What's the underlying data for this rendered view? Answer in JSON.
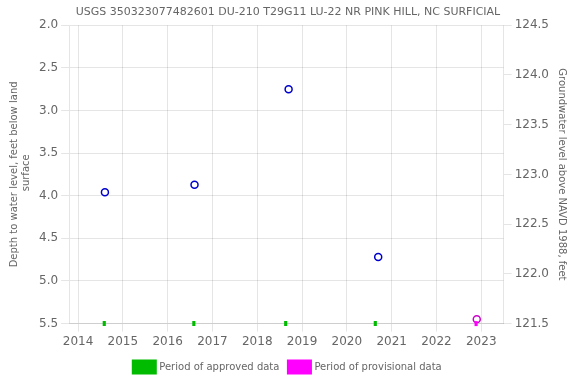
{
  "chart_data": {
    "type": "scatter",
    "title": "USGS 350323077482601 DU-210 T29G11 LU-22 NR PINK HILL, NC SURFICIAL",
    "ylabel": "Depth to water level, feet below land\n surface",
    "y2label": "Groundwater level above NAVD 1988, feet",
    "xlim": [
      2013.8,
      2023.5
    ],
    "xticks": [
      2014,
      2015,
      2016,
      2017,
      2018,
      2019,
      2020,
      2021,
      2022,
      2023
    ],
    "ylim": [
      5.5,
      2.0
    ],
    "yticks": [
      {
        "value": 2.0,
        "label": "2.0"
      },
      2.5,
      {
        "value": 3.0,
        "label": "3.0"
      },
      3.5,
      {
        "value": 4.0,
        "label": "4.0"
      },
      4.5,
      {
        "value": 5.0,
        "label": "5.0"
      },
      5.5
    ],
    "y2lim": [
      121.5,
      124.5
    ],
    "y2ticks": [
      121.5,
      {
        "value": 122.0,
        "label": "122.0"
      },
      122.5,
      {
        "value": 123.0,
        "label": "123.0"
      },
      123.5,
      {
        "value": 124.0,
        "label": "124.0"
      },
      124.5
    ],
    "grid": true,
    "legend": "bottom",
    "series": [
      {
        "type": "scatter",
        "marker": "circle",
        "color": "#0000cc",
        "x": [
          2014.6,
          2016.6,
          2018.7,
          2020.7
        ],
        "values": [
          3.96,
          3.87,
          2.75,
          4.72
        ]
      },
      {
        "type": "scatter",
        "marker": "circle",
        "color": "#cc00cc",
        "x": [
          2022.9
        ],
        "values": [
          5.45
        ]
      },
      {
        "type": "line",
        "line_style": "solid",
        "name": "Period of approved data",
        "color": "#00bb00",
        "x_start": [
          2014.55,
          2016.55,
          2018.6,
          2020.6
        ],
        "x_end": [
          2014.62,
          2016.62,
          2018.67,
          2020.67
        ]
      },
      {
        "type": "line",
        "line_style": "solid",
        "name": "Period of provisional data",
        "color": "#ff00ff",
        "x_start": [
          2022.85
        ],
        "x_end": [
          2022.92
        ]
      }
    ]
  }
}
